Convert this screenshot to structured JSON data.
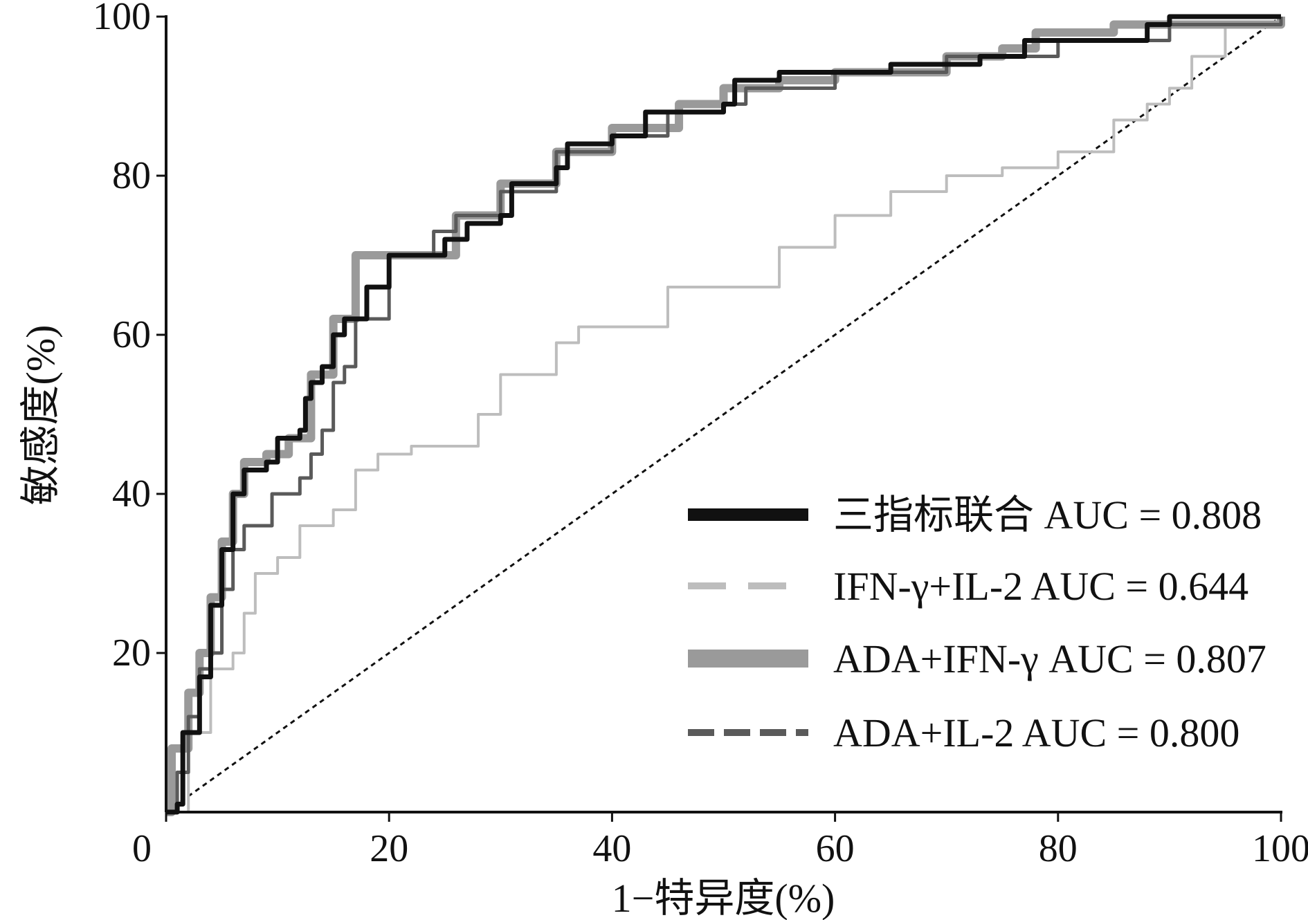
{
  "chart_data": {
    "type": "line",
    "title": "",
    "xlabel": "1−特异度(%)",
    "ylabel": "敏感度(%)",
    "xlim": [
      0,
      100
    ],
    "ylim": [
      0,
      100
    ],
    "xticks": [
      0,
      20,
      40,
      60,
      80,
      100
    ],
    "yticks": [
      20,
      40,
      60,
      80,
      100
    ],
    "grid": false,
    "legend_position": "bottom-right",
    "reference_line": {
      "style": "dotted",
      "color": "#111111",
      "points": [
        [
          0,
          0
        ],
        [
          100,
          100
        ]
      ]
    },
    "series": [
      {
        "name": "三指标联合 AUC = 0.808",
        "color": "#111111",
        "style": "solid-thick",
        "points": [
          [
            0,
            0
          ],
          [
            1,
            1
          ],
          [
            1.5,
            10
          ],
          [
            3,
            17
          ],
          [
            4,
            26
          ],
          [
            5,
            33
          ],
          [
            6,
            40
          ],
          [
            7,
            43
          ],
          [
            9,
            44
          ],
          [
            10,
            47
          ],
          [
            12,
            48
          ],
          [
            12.5,
            52
          ],
          [
            13,
            54
          ],
          [
            14,
            56
          ],
          [
            15,
            60
          ],
          [
            16,
            62
          ],
          [
            17,
            62
          ],
          [
            18,
            66
          ],
          [
            20,
            70
          ],
          [
            23,
            70
          ],
          [
            25,
            72
          ],
          [
            27,
            74
          ],
          [
            30,
            75
          ],
          [
            31,
            79
          ],
          [
            33,
            79
          ],
          [
            35,
            81
          ],
          [
            36,
            84
          ],
          [
            40,
            85
          ],
          [
            43,
            88
          ],
          [
            48,
            88
          ],
          [
            50,
            89
          ],
          [
            51,
            92
          ],
          [
            55,
            93
          ],
          [
            60,
            93
          ],
          [
            65,
            94
          ],
          [
            73,
            95
          ],
          [
            77,
            97
          ],
          [
            85,
            97
          ],
          [
            88,
            99
          ],
          [
            90,
            100
          ],
          [
            100,
            100
          ]
        ]
      },
      {
        "name": "IFN-γ+IL-2 AUC = 0.644",
        "color": "#bdbdbd",
        "style": "dashed",
        "points": [
          [
            0,
            0
          ],
          [
            2,
            10
          ],
          [
            4,
            18
          ],
          [
            6,
            20
          ],
          [
            7,
            25
          ],
          [
            8,
            30
          ],
          [
            10,
            32
          ],
          [
            12,
            36
          ],
          [
            15,
            38
          ],
          [
            17,
            43
          ],
          [
            19,
            45
          ],
          [
            22,
            46
          ],
          [
            26,
            46
          ],
          [
            28,
            50
          ],
          [
            30,
            55
          ],
          [
            35,
            59
          ],
          [
            37,
            61
          ],
          [
            45,
            66
          ],
          [
            55,
            71
          ],
          [
            60,
            75
          ],
          [
            65,
            78
          ],
          [
            70,
            80
          ],
          [
            75,
            81
          ],
          [
            80,
            83
          ],
          [
            85,
            87
          ],
          [
            88,
            89
          ],
          [
            90,
            91
          ],
          [
            92,
            95
          ],
          [
            95,
            99
          ],
          [
            100,
            100
          ]
        ]
      },
      {
        "name": "ADA+IFN-γ AUC = 0.807",
        "color": "#9a9a9a",
        "style": "solid-wide",
        "points": [
          [
            0,
            0
          ],
          [
            0.5,
            8
          ],
          [
            2,
            15
          ],
          [
            3,
            20
          ],
          [
            4,
            27
          ],
          [
            5,
            34
          ],
          [
            6,
            40
          ],
          [
            7,
            44
          ],
          [
            9,
            45
          ],
          [
            11,
            47
          ],
          [
            13,
            55
          ],
          [
            15,
            62
          ],
          [
            17,
            70
          ],
          [
            19,
            70
          ],
          [
            22,
            70
          ],
          [
            26,
            75
          ],
          [
            30,
            79
          ],
          [
            35,
            83
          ],
          [
            40,
            86
          ],
          [
            46,
            89
          ],
          [
            50,
            91
          ],
          [
            55,
            92
          ],
          [
            60,
            93
          ],
          [
            70,
            95
          ],
          [
            75,
            96
          ],
          [
            78,
            98
          ],
          [
            85,
            99
          ],
          [
            100,
            100
          ]
        ]
      },
      {
        "name": "ADA+IL-2 AUC = 0.800",
        "color": "#5a5a5a",
        "style": "dashed",
        "points": [
          [
            0,
            0
          ],
          [
            1,
            5
          ],
          [
            2,
            12
          ],
          [
            3,
            18
          ],
          [
            4,
            20
          ],
          [
            5,
            28
          ],
          [
            6,
            33
          ],
          [
            7,
            36
          ],
          [
            9,
            36
          ],
          [
            9.5,
            40
          ],
          [
            11,
            40
          ],
          [
            12,
            42
          ],
          [
            13,
            45
          ],
          [
            14,
            48
          ],
          [
            15,
            54
          ],
          [
            16,
            56
          ],
          [
            17,
            62
          ],
          [
            20,
            70
          ],
          [
            22,
            70
          ],
          [
            24,
            73
          ],
          [
            26,
            75
          ],
          [
            30,
            78
          ],
          [
            35,
            83
          ],
          [
            40,
            85
          ],
          [
            45,
            88
          ],
          [
            50,
            89
          ],
          [
            52,
            91
          ],
          [
            60,
            93
          ],
          [
            70,
            95
          ],
          [
            80,
            97
          ],
          [
            90,
            99
          ],
          [
            100,
            100
          ]
        ]
      }
    ]
  }
}
